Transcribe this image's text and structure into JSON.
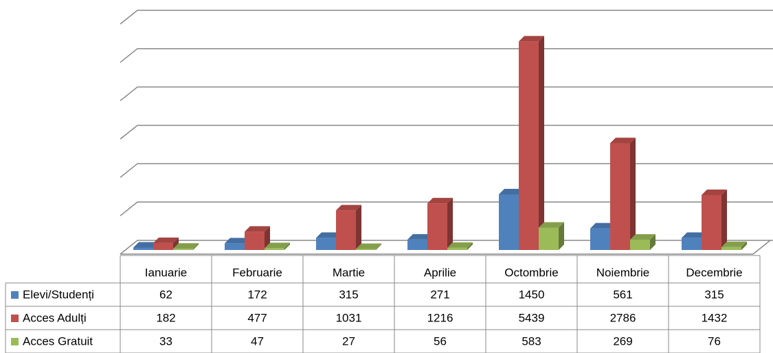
{
  "chart_data": {
    "type": "bar3d",
    "categories": [
      "Ianuarie",
      "Februarie",
      "Martie",
      "Aprilie",
      "Octombrie",
      "Noiembrie",
      "Decembrie"
    ],
    "series": [
      {
        "name": "Elevi/Studenți",
        "color": "#4f81bd",
        "values": [
          62,
          172,
          315,
          271,
          1450,
          561,
          315
        ]
      },
      {
        "name": "Acces Adulți",
        "color": "#c0504d",
        "values": [
          182,
          477,
          1031,
          1216,
          5439,
          2786,
          1432
        ]
      },
      {
        "name": "Acces Gratuit",
        "color": "#9bbb59",
        "values": [
          33,
          47,
          27,
          56,
          583,
          269,
          76
        ]
      }
    ],
    "ylim": [
      0,
      6000
    ],
    "yticks": [
      0,
      1000,
      2000,
      3000,
      4000,
      5000,
      6000
    ],
    "grid": true,
    "data_table": true
  }
}
